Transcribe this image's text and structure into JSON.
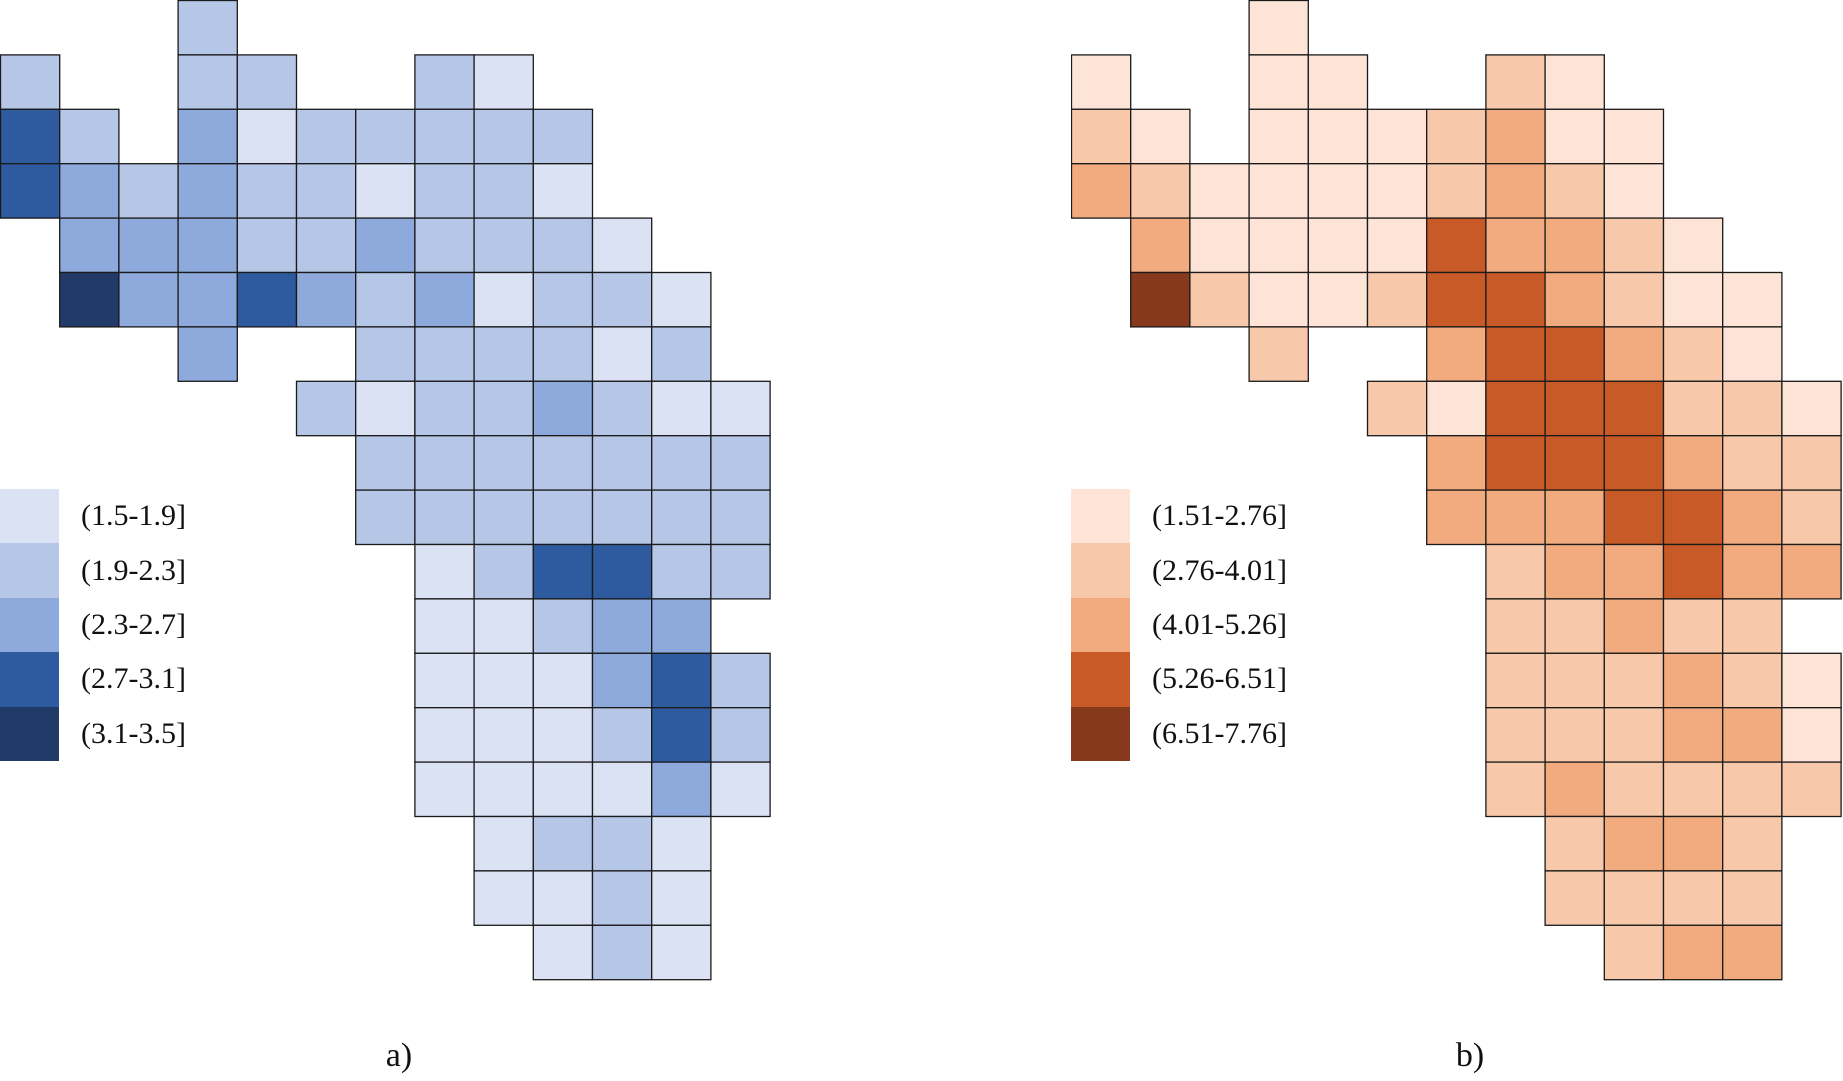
{
  "panels": [
    {
      "id": "a",
      "caption": "a)",
      "classes": [
        {
          "label": "(1.5-1.9]",
          "color": "#dbe2f3"
        },
        {
          "label": "(1.9-2.3]",
          "color": "#b6c6e7"
        },
        {
          "label": "(2.3-2.7]",
          "color": "#8ea9dc"
        },
        {
          "label": "(2.7-3.1]",
          "color": "#2e5a9f"
        },
        {
          "label": "(3.1-3.5]",
          "color": "#213a68"
        }
      ],
      "grid": [
        [
          0,
          0,
          0,
          2,
          0,
          0,
          0,
          0,
          0,
          0,
          0,
          0,
          0
        ],
        [
          2,
          0,
          0,
          2,
          2,
          0,
          0,
          2,
          1,
          0,
          0,
          0,
          0
        ],
        [
          4,
          2,
          0,
          3,
          1,
          2,
          2,
          2,
          2,
          2,
          0,
          0,
          0
        ],
        [
          4,
          3,
          2,
          3,
          2,
          2,
          1,
          2,
          2,
          1,
          0,
          0,
          0
        ],
        [
          0,
          3,
          3,
          3,
          2,
          2,
          3,
          2,
          2,
          2,
          1,
          0,
          0
        ],
        [
          0,
          5,
          3,
          3,
          4,
          3,
          2,
          3,
          1,
          2,
          2,
          1,
          0
        ],
        [
          0,
          0,
          0,
          3,
          0,
          0,
          2,
          2,
          2,
          2,
          1,
          2,
          0
        ],
        [
          0,
          0,
          0,
          0,
          0,
          2,
          1,
          2,
          2,
          3,
          2,
          1,
          1
        ],
        [
          0,
          0,
          0,
          0,
          0,
          0,
          2,
          2,
          2,
          2,
          2,
          2,
          2
        ],
        [
          0,
          0,
          0,
          0,
          0,
          0,
          2,
          2,
          2,
          2,
          2,
          2,
          2
        ],
        [
          0,
          0,
          0,
          0,
          0,
          0,
          0,
          1,
          2,
          4,
          4,
          2,
          2
        ],
        [
          0,
          0,
          0,
          0,
          0,
          0,
          0,
          1,
          1,
          2,
          3,
          3,
          0
        ],
        [
          0,
          0,
          0,
          0,
          0,
          0,
          0,
          1,
          1,
          1,
          3,
          4,
          2
        ],
        [
          0,
          0,
          0,
          0,
          0,
          0,
          0,
          1,
          1,
          1,
          2,
          4,
          2
        ],
        [
          0,
          0,
          0,
          0,
          0,
          0,
          0,
          1,
          1,
          1,
          1,
          3,
          1
        ],
        [
          0,
          0,
          0,
          0,
          0,
          0,
          0,
          0,
          1,
          2,
          2,
          1,
          0
        ],
        [
          0,
          0,
          0,
          0,
          0,
          0,
          0,
          0,
          1,
          1,
          2,
          1,
          0
        ],
        [
          0,
          0,
          0,
          0,
          0,
          0,
          0,
          0,
          0,
          1,
          2,
          1,
          0
        ]
      ]
    },
    {
      "id": "b",
      "caption": "b)",
      "classes": [
        {
          "label": "(1.51-2.76]",
          "color": "#fde4d6"
        },
        {
          "label": "(2.76-4.01]",
          "color": "#f7c9aa"
        },
        {
          "label": "(4.01-5.26]",
          "color": "#f2aa7f"
        },
        {
          "label": "(5.26-6.51]",
          "color": "#c85a28"
        },
        {
          "label": "(6.51-7.76]",
          "color": "#86391c"
        }
      ],
      "grid": [
        [
          0,
          0,
          0,
          1,
          0,
          0,
          0,
          0,
          0,
          0,
          0,
          0,
          0
        ],
        [
          1,
          0,
          0,
          1,
          1,
          0,
          0,
          2,
          1,
          0,
          0,
          0,
          0
        ],
        [
          2,
          1,
          0,
          1,
          1,
          1,
          2,
          3,
          1,
          1,
          0,
          0,
          0
        ],
        [
          3,
          2,
          1,
          1,
          1,
          1,
          2,
          3,
          2,
          1,
          0,
          0,
          0
        ],
        [
          0,
          3,
          1,
          1,
          1,
          1,
          4,
          3,
          3,
          2,
          1,
          0,
          0
        ],
        [
          0,
          5,
          2,
          1,
          1,
          2,
          4,
          4,
          3,
          2,
          1,
          1,
          0
        ],
        [
          0,
          0,
          0,
          2,
          0,
          0,
          3,
          4,
          4,
          3,
          2,
          1,
          0
        ],
        [
          0,
          0,
          0,
          0,
          0,
          2,
          1,
          4,
          4,
          4,
          2,
          2,
          1
        ],
        [
          0,
          0,
          0,
          0,
          0,
          0,
          3,
          4,
          4,
          4,
          3,
          2,
          2
        ],
        [
          0,
          0,
          0,
          0,
          0,
          0,
          3,
          3,
          3,
          4,
          4,
          3,
          2
        ],
        [
          0,
          0,
          0,
          0,
          0,
          0,
          0,
          2,
          3,
          3,
          4,
          3,
          3
        ],
        [
          0,
          0,
          0,
          0,
          0,
          0,
          0,
          2,
          2,
          3,
          2,
          2,
          0
        ],
        [
          0,
          0,
          0,
          0,
          0,
          0,
          0,
          2,
          2,
          2,
          3,
          2,
          1
        ],
        [
          0,
          0,
          0,
          0,
          0,
          0,
          0,
          2,
          2,
          2,
          3,
          3,
          1
        ],
        [
          0,
          0,
          0,
          0,
          0,
          0,
          0,
          2,
          3,
          2,
          2,
          2,
          2
        ],
        [
          0,
          0,
          0,
          0,
          0,
          0,
          0,
          0,
          2,
          3,
          3,
          2,
          0
        ],
        [
          0,
          0,
          0,
          0,
          0,
          0,
          0,
          0,
          2,
          2,
          2,
          2,
          0
        ],
        [
          0,
          0,
          0,
          0,
          0,
          0,
          0,
          0,
          0,
          2,
          3,
          3,
          0
        ]
      ]
    }
  ]
}
